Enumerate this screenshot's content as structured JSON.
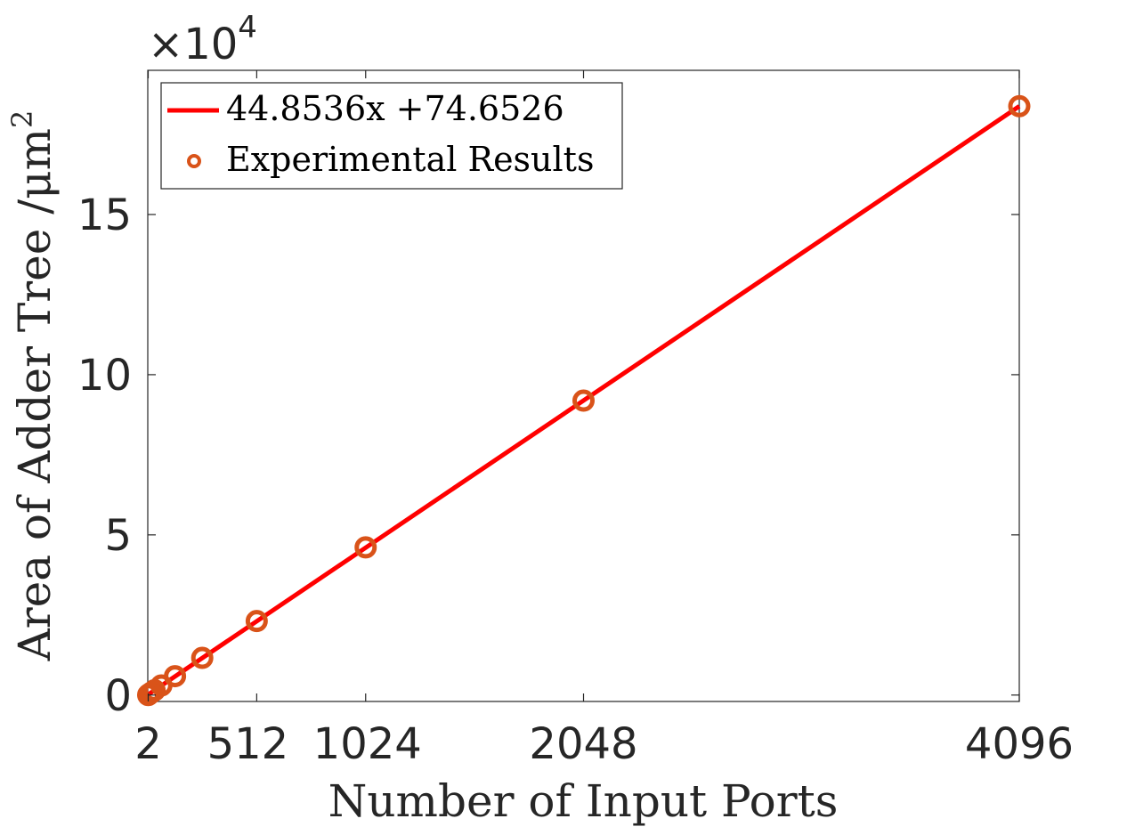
{
  "chart_data": {
    "type": "line",
    "title": "",
    "xlabel": "Number of Input Ports",
    "ylabel": "Area of Adder Tree /μm",
    "ylabel_superscript": "2",
    "y_multiplier_base": "×10",
    "y_multiplier_exponent": "4",
    "xlim": [
      0,
      4096
    ],
    "ylim": [
      -0.2,
      19.5
    ],
    "x_ticks": [
      2,
      512,
      1024,
      2048,
      4096
    ],
    "x_tick_labels": [
      "2",
      "512",
      "1024",
      "2048",
      "4096"
    ],
    "y_ticks": [
      0,
      5,
      10,
      15
    ],
    "y_tick_labels": [
      "0",
      "5",
      "10",
      "15"
    ],
    "grid": false,
    "legend_position": "top-left",
    "series": [
      {
        "name": "44.8536x +74.6526",
        "kind": "line",
        "color": "#ff0000",
        "slope": 44.8536,
        "intercept": 74.6526,
        "x": [
          2,
          4096
        ],
        "values": [
          0.0163,
          18.3792
        ]
      },
      {
        "name": "Experimental Results",
        "kind": "scatter",
        "color": "#d95319",
        "x": [
          2,
          4,
          8,
          16,
          32,
          64,
          128,
          256,
          512,
          1024,
          2048,
          4096
        ],
        "values": [
          0.0015,
          0.0165,
          0.036,
          0.073,
          0.15,
          0.3,
          0.59,
          1.16,
          2.31,
          4.61,
          9.19,
          18.38
        ]
      }
    ]
  }
}
